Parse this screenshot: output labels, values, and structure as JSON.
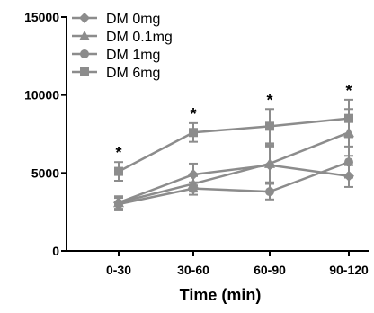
{
  "chart_data": {
    "type": "line",
    "categories": [
      "0-30",
      "30-60",
      "60-90",
      "90-120"
    ],
    "xlabel": "Time (min)",
    "ylabel": "",
    "ylim": [
      0,
      15000
    ],
    "yticks": [
      0,
      5000,
      10000,
      15000
    ],
    "legend_position": "top-left",
    "grid": false,
    "color": "#8c8c8c",
    "significance": [
      "*",
      "*",
      "*",
      "*"
    ],
    "series": [
      {
        "name": "DM 0mg",
        "marker": "diamond",
        "values": [
          3100,
          4900,
          5500,
          4800
        ],
        "errors": [
          400,
          700,
          1200,
          700
        ]
      },
      {
        "name": "DM 0.1mg",
        "marker": "triangle",
        "values": [
          3100,
          4300,
          5600,
          7600
        ],
        "errors": [
          400,
          500,
          1200,
          1500
        ]
      },
      {
        "name": "DM 1mg",
        "marker": "circle",
        "values": [
          3000,
          4000,
          3800,
          5700
        ],
        "errors": [
          400,
          400,
          500,
          1000
        ]
      },
      {
        "name": "DM 6mg",
        "marker": "square",
        "values": [
          5100,
          7600,
          8000,
          8500
        ],
        "errors": [
          600,
          600,
          1100,
          1200
        ]
      }
    ]
  }
}
